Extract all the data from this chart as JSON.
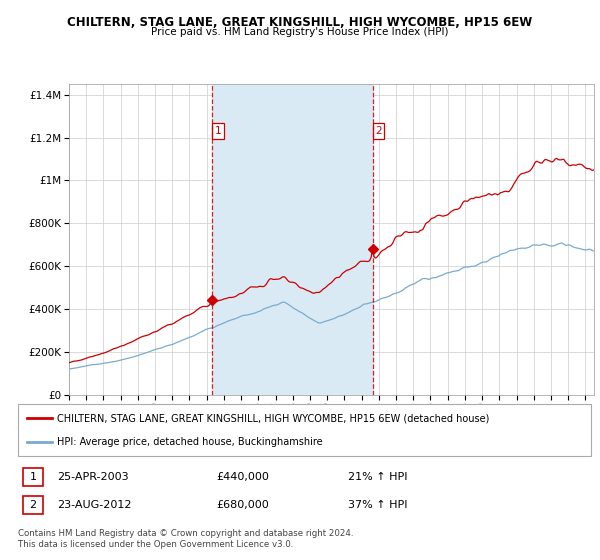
{
  "title": "CHILTERN, STAG LANE, GREAT KINGSHILL, HIGH WYCOMBE, HP15 6EW",
  "subtitle": "Price paid vs. HM Land Registry's House Price Index (HPI)",
  "legend_line1": "CHILTERN, STAG LANE, GREAT KINGSHILL, HIGH WYCOMBE, HP15 6EW (detached house)",
  "legend_line2": "HPI: Average price, detached house, Buckinghamshire",
  "sale1_date": 2003.3,
  "sale1_price": 440000,
  "sale1_label": "25-APR-2003",
  "sale1_pct": "21%",
  "sale2_date": 2012.64,
  "sale2_price": 680000,
  "sale2_label": "23-AUG-2012",
  "sale2_pct": "37%",
  "footer": "Contains HM Land Registry data © Crown copyright and database right 2024.\nThis data is licensed under the Open Government Licence v3.0.",
  "ylim": [
    0,
    1450000
  ],
  "xlim": [
    1995.0,
    2025.5
  ],
  "red_color": "#cc0000",
  "blue_color": "#7aabcf",
  "shaded_color": "#daeaf5",
  "vline_color": "#cc0000",
  "background_color": "#ffffff",
  "grid_color": "#cccccc"
}
